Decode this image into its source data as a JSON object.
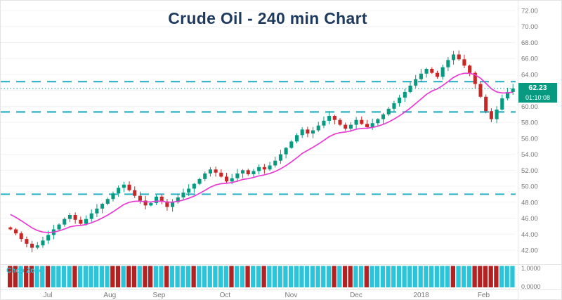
{
  "title": "Crude Oil - 240 min Chart",
  "colors": {
    "up_candle": "#089981",
    "down_candle": "#c62828",
    "ma_line": "#e83bd4",
    "level_line": "#2ab3c8",
    "price_line": "#089981",
    "label_bg": "#089981",
    "axis_text": "#787878",
    "title_text": "#1e3a5f",
    "chop_teal": "#2bc4d9",
    "chop_red": "#b22222"
  },
  "chart_data": {
    "type": "candlestick",
    "title": "Crude Oil - 240 min Chart",
    "timeframe": "240 min",
    "y_axis": {
      "min": 42,
      "max": 72,
      "step": 2,
      "tick_labels": [
        "72.00",
        "70.00",
        "68.00",
        "66.00",
        "64.00",
        "62.00",
        "60.00",
        "58.00",
        "56.00",
        "54.00",
        "52.00",
        "50.00",
        "48.00",
        "46.00",
        "44.00",
        "42.00"
      ]
    },
    "x_axis": {
      "tick_labels": [
        {
          "label": "Jul",
          "pos": 0.079
        },
        {
          "label": "Aug",
          "pos": 0.201
        },
        {
          "label": "Sep",
          "pos": 0.298
        },
        {
          "label": "Oct",
          "pos": 0.428
        },
        {
          "label": "Nov",
          "pos": 0.558
        },
        {
          "label": "Dec",
          "pos": 0.686
        },
        {
          "label": "2018",
          "pos": 0.814
        },
        {
          "label": "Feb",
          "pos": 0.937
        }
      ]
    },
    "close_samples": [
      44.6,
      44.1,
      43.4,
      42.8,
      42.3,
      42.6,
      43.2,
      43.9,
      44.6,
      45.2,
      45.9,
      46.4,
      45.8,
      45.3,
      45.9,
      46.6,
      47.2,
      47.8,
      48.4,
      49.1,
      49.8,
      50.2,
      49.5,
      48.8,
      48.2,
      47.6,
      47.9,
      48.7,
      48.1,
      47.4,
      48.0,
      48.6,
      49.2,
      49.7,
      50.3,
      50.9,
      51.6,
      52.1,
      51.7,
      51.2,
      50.6,
      51.0,
      51.6,
      52.0,
      51.5,
      51.9,
      52.4,
      52.1,
      52.6,
      53.2,
      54.0,
      54.8,
      55.6,
      56.4,
      57.1,
      56.6,
      57.0,
      57.6,
      58.2,
      58.8,
      58.3,
      57.7,
      57.2,
      57.7,
      58.3,
      57.8,
      57.4,
      57.9,
      58.4,
      59.0,
      59.7,
      60.4,
      61.1,
      61.8,
      62.6,
      63.4,
      64.1,
      64.7,
      64.2,
      63.7,
      64.9,
      65.8,
      66.5,
      65.9,
      65.1,
      64.2,
      62.8,
      61.2,
      59.4,
      58.4,
      59.6,
      61.0,
      61.8,
      62.23
    ],
    "moving_average": {
      "period": 12,
      "seed": 46.8
    },
    "horizontal_levels": [
      63.1,
      59.3,
      49.0
    ],
    "last_price": {
      "value": 62.23,
      "label": "62.23",
      "countdown": "01:10:08"
    },
    "indicator_panel": {
      "name": "Chop Zone",
      "tick_labels": [
        "1.0000",
        "0.0000"
      ],
      "bar_pattern_segments": [
        "rrtrrttrtt",
        "ttrttttttr",
        "rtrrtrrttr",
        "ttttrttttt",
        "trttrttrtt",
        "tttttttttt",
        "rtrrttrttt",
        "tttttttttt",
        "ttrtttrrrr",
        "rttt"
      ]
    }
  }
}
